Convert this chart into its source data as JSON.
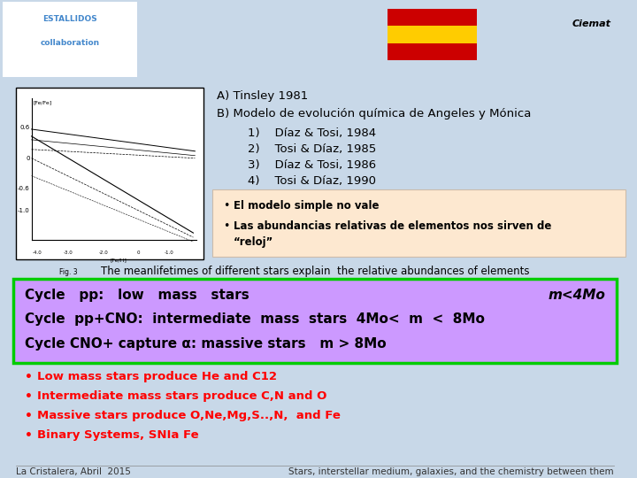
{
  "bg_color": "#c8d8e8",
  "title_area": {
    "A_line": "A) Tinsley 1981",
    "B_line": "B) Modelo de evolución química de Angeles y Mónica",
    "items": [
      "1)    Díaz & Tosi, 1984",
      "2)    Tosi & Díaz, 1985",
      "3)    Díaz & Tosi, 1986",
      "4)    Tosi & Díaz, 1990"
    ]
  },
  "bullet_box": {
    "bg": "#fde8d0",
    "bullets": [
      "El modelo simple no vale",
      "Las abundancias relativas de elementos nos sirven de",
      "“reloj”"
    ]
  },
  "meanlife_text": "The meanlifetimes of different stars explain  the relative abundances of elements",
  "cycle_box": {
    "bg": "#cc99ff",
    "border": "#00cc00",
    "line1a": "Cycle   pp:   low   mass   stars",
    "line1b": "m<4Mo",
    "line2": "Cycle  pp+CNO:  intermediate  mass  stars  4Mo<  m  <  8Mo",
    "line3": "Cycle CNO+ capture α: massive stars   m > 8Mo"
  },
  "red_bullets": [
    "Low mass stars produce He and C12",
    "Intermediate mass stars produce C,N and O",
    "Massive stars produce O,Ne,Mg,S..,N,  and Fe",
    "Binary Systems, SNIa Fe"
  ],
  "footer_left": "La Cristalera, Abril  2015",
  "footer_right": "Stars, interstellar medium, galaxies, and the chemistry between them"
}
